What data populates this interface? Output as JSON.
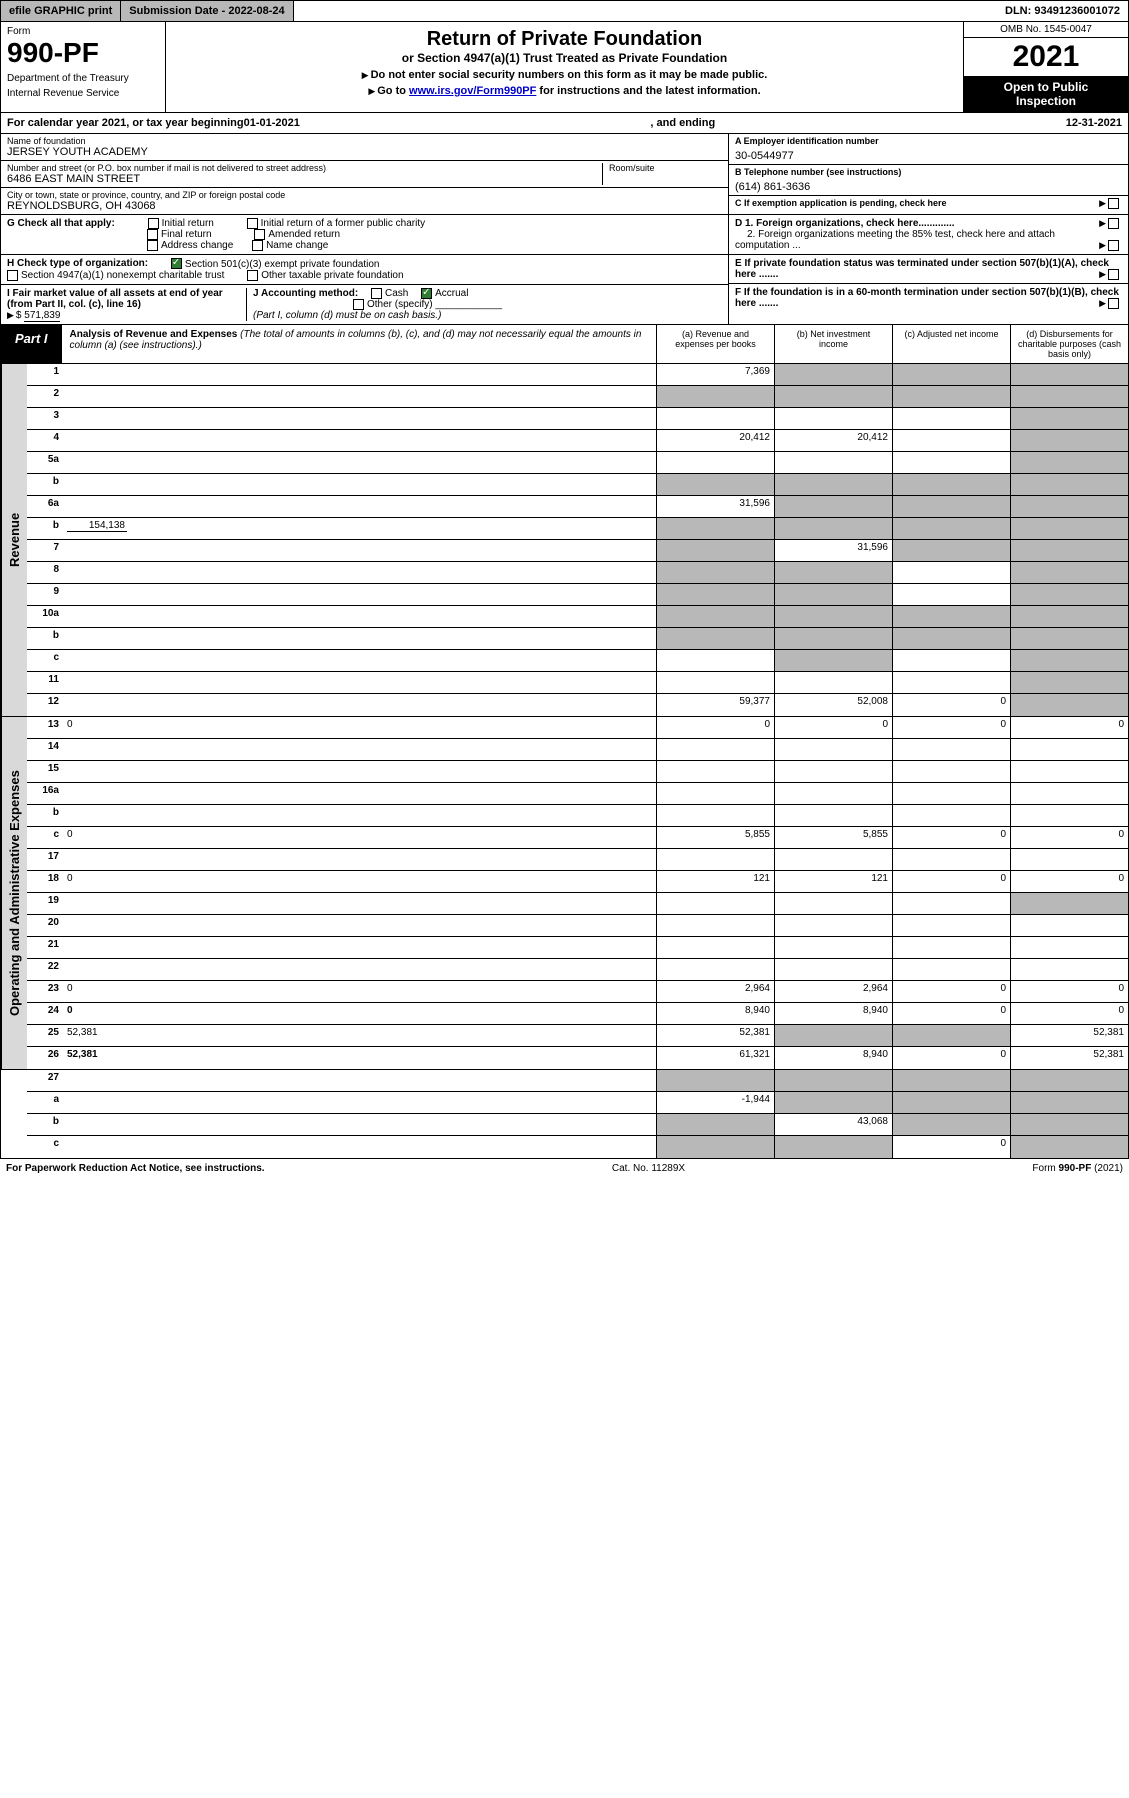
{
  "topbar": {
    "efile": "efile GRAPHIC print",
    "subdate_label": "Submission Date - ",
    "subdate": "2022-08-24",
    "dln_label": "DLN: ",
    "dln": "93491236001072"
  },
  "header": {
    "form_label": "Form",
    "form_no": "990-PF",
    "dept1": "Department of the Treasury",
    "dept2": "Internal Revenue Service",
    "title1": "Return of Private Foundation",
    "title2": "or Section 4947(a)(1) Trust Treated as Private Foundation",
    "note1": "Do not enter social security numbers on this form as it may be made public.",
    "note2_pre": "Go to ",
    "note2_link": "www.irs.gov/Form990PF",
    "note2_post": " for instructions and the latest information.",
    "omb": "OMB No. 1545-0047",
    "year": "2021",
    "open1": "Open to Public",
    "open2": "Inspection"
  },
  "calrow": {
    "pre": "For calendar year 2021, or tax year beginning ",
    "begin": "01-01-2021",
    "mid": ", and ending ",
    "end": "12-31-2021"
  },
  "ident": {
    "name_label": "Name of foundation",
    "name": "JERSEY YOUTH ACADEMY",
    "addr_label": "Number and street (or P.O. box number if mail is not delivered to street address)",
    "room_label": "Room/suite",
    "addr": "6486 EAST MAIN STREET",
    "city_label": "City or town, state or province, country, and ZIP or foreign postal code",
    "city": "REYNOLDSBURG, OH  43068",
    "ein_label": "A Employer identification number",
    "ein": "30-0544977",
    "phone_label": "B Telephone number (see instructions)",
    "phone": "(614) 861-3636",
    "c_label": "C If exemption application is pending, check here",
    "d1": "D 1. Foreign organizations, check here.............",
    "d2": "2. Foreign organizations meeting the 85% test, check here and attach computation ...",
    "e_label": "E  If private foundation status was terminated under section 507(b)(1)(A), check here .......",
    "f_label": "F  If the foundation is in a 60-month termination under section 507(b)(1)(B), check here .......",
    "g_label": "G Check all that apply:",
    "g_opts": [
      "Initial return",
      "Initial return of a former public charity",
      "Final return",
      "Amended return",
      "Address change",
      "Name change"
    ],
    "h_label": "H Check type of organization:",
    "h1": "Section 501(c)(3) exempt private foundation",
    "h2": "Section 4947(a)(1) nonexempt charitable trust",
    "h3": "Other taxable private foundation",
    "i_label": "I Fair market value of all assets at end of year (from Part II, col. (c), line 16)",
    "i_val": "571,839",
    "j_label": "J Accounting method:",
    "j_cash": "Cash",
    "j_accrual": "Accrual",
    "j_other": "Other (specify)",
    "j_note": "(Part I, column (d) must be on cash basis.)"
  },
  "part1": {
    "label": "Part I",
    "title": "Analysis of Revenue and Expenses",
    "note": " (The total of amounts in columns (b), (c), and (d) may not necessarily equal the amounts in column (a) (see instructions).)",
    "col_a": "(a)   Revenue and expenses per books",
    "col_b": "(b)   Net investment income",
    "col_c": "(c)   Adjusted net income",
    "col_d": "(d)   Disbursements for charitable purposes (cash basis only)"
  },
  "side": {
    "rev": "Revenue",
    "exp": "Operating and Administrative Expenses"
  },
  "rows": {
    "r1": {
      "n": "1",
      "d": "",
      "a": "7,369",
      "b": "",
      "c": "",
      "sb": true,
      "sc": true,
      "sd": true
    },
    "r2": {
      "n": "2",
      "d": "",
      "a": "",
      "b": "",
      "c": "",
      "sa": true,
      "sb": true,
      "sc": true,
      "sd": true
    },
    "r3": {
      "n": "3",
      "d": "",
      "a": "",
      "b": "",
      "c": "",
      "sd": true
    },
    "r4": {
      "n": "4",
      "d": "",
      "a": "20,412",
      "b": "20,412",
      "c": "",
      "sd": true
    },
    "r5a": {
      "n": "5a",
      "d": "",
      "a": "",
      "b": "",
      "c": "",
      "sd": true
    },
    "r5b": {
      "n": "b",
      "d": "",
      "a": "",
      "b": "",
      "c": "",
      "sa": true,
      "sb": true,
      "sc": true,
      "sd": true
    },
    "r6a": {
      "n": "6a",
      "d": "",
      "a": "31,596",
      "b": "",
      "c": "",
      "sb": true,
      "sc": true,
      "sd": true
    },
    "r6b": {
      "n": "b",
      "d": "",
      "inline": "154,138",
      "a": "",
      "b": "",
      "c": "",
      "sa": true,
      "sb": true,
      "sc": true,
      "sd": true
    },
    "r7": {
      "n": "7",
      "d": "",
      "a": "",
      "b": "31,596",
      "c": "",
      "sa": true,
      "sc": true,
      "sd": true
    },
    "r8": {
      "n": "8",
      "d": "",
      "a": "",
      "b": "",
      "c": "",
      "sa": true,
      "sb": true,
      "sd": true
    },
    "r9": {
      "n": "9",
      "d": "",
      "a": "",
      "b": "",
      "c": "",
      "sa": true,
      "sb": true,
      "sd": true
    },
    "r10a": {
      "n": "10a",
      "d": "",
      "a": "",
      "b": "",
      "c": "",
      "sa": true,
      "sb": true,
      "sc": true,
      "sd": true
    },
    "r10b": {
      "n": "b",
      "d": "",
      "a": "",
      "b": "",
      "c": "",
      "sa": true,
      "sb": true,
      "sc": true,
      "sd": true
    },
    "r10c": {
      "n": "c",
      "d": "",
      "a": "",
      "b": "",
      "c": "",
      "sb": true,
      "sd": true
    },
    "r11": {
      "n": "11",
      "d": "",
      "a": "",
      "b": "",
      "c": "",
      "sd": true
    },
    "r12": {
      "n": "12",
      "d": "",
      "bold": true,
      "a": "59,377",
      "b": "52,008",
      "c": "0",
      "sd": true
    },
    "r13": {
      "n": "13",
      "d": "0",
      "a": "0",
      "b": "0",
      "c": "0"
    },
    "r14": {
      "n": "14",
      "d": "",
      "a": "",
      "b": "",
      "c": ""
    },
    "r15": {
      "n": "15",
      "d": "",
      "a": "",
      "b": "",
      "c": ""
    },
    "r16a": {
      "n": "16a",
      "d": "",
      "a": "",
      "b": "",
      "c": ""
    },
    "r16b": {
      "n": "b",
      "d": "",
      "a": "",
      "b": "",
      "c": ""
    },
    "r16c": {
      "n": "c",
      "d": "0",
      "a": "5,855",
      "b": "5,855",
      "c": "0"
    },
    "r17": {
      "n": "17",
      "d": "",
      "a": "",
      "b": "",
      "c": ""
    },
    "r18": {
      "n": "18",
      "d": "0",
      "a": "121",
      "b": "121",
      "c": "0"
    },
    "r19": {
      "n": "19",
      "d": "",
      "a": "",
      "b": "",
      "c": "",
      "sd": true
    },
    "r20": {
      "n": "20",
      "d": "",
      "a": "",
      "b": "",
      "c": ""
    },
    "r21": {
      "n": "21",
      "d": "",
      "a": "",
      "b": "",
      "c": ""
    },
    "r22": {
      "n": "22",
      "d": "",
      "a": "",
      "b": "",
      "c": ""
    },
    "r23": {
      "n": "23",
      "d": "0",
      "a": "2,964",
      "b": "2,964",
      "c": "0"
    },
    "r24": {
      "n": "24",
      "d": "0",
      "bold": true,
      "a": "8,940",
      "b": "8,940",
      "c": "0"
    },
    "r25": {
      "n": "25",
      "d": "52,381",
      "a": "52,381",
      "b": "",
      "c": "",
      "sb": true,
      "sc": true
    },
    "r26": {
      "n": "26",
      "d": "52,381",
      "bold": true,
      "a": "61,321",
      "b": "8,940",
      "c": "0"
    },
    "r27": {
      "n": "27",
      "d": "",
      "a": "",
      "b": "",
      "c": "",
      "sa": true,
      "sb": true,
      "sc": true,
      "sd": true
    },
    "r27a": {
      "n": "a",
      "d": "",
      "bold": true,
      "a": "-1,944",
      "b": "",
      "c": "",
      "sb": true,
      "sc": true,
      "sd": true
    },
    "r27b": {
      "n": "b",
      "d": "",
      "bold": true,
      "a": "",
      "b": "43,068",
      "c": "",
      "sa": true,
      "sc": true,
      "sd": true
    },
    "r27c": {
      "n": "c",
      "d": "",
      "bold": true,
      "a": "",
      "b": "",
      "c": "0",
      "sa": true,
      "sb": true,
      "sd": true
    }
  },
  "footer": {
    "left": "For Paperwork Reduction Act Notice, see instructions.",
    "mid": "Cat. No. 11289X",
    "right": "Form 990-PF (2021)"
  },
  "colors": {
    "shade": "#b8b8b8",
    "sidebar": "#d9d9d9",
    "check_green": "#2e7d32",
    "link": "#0000cc"
  }
}
